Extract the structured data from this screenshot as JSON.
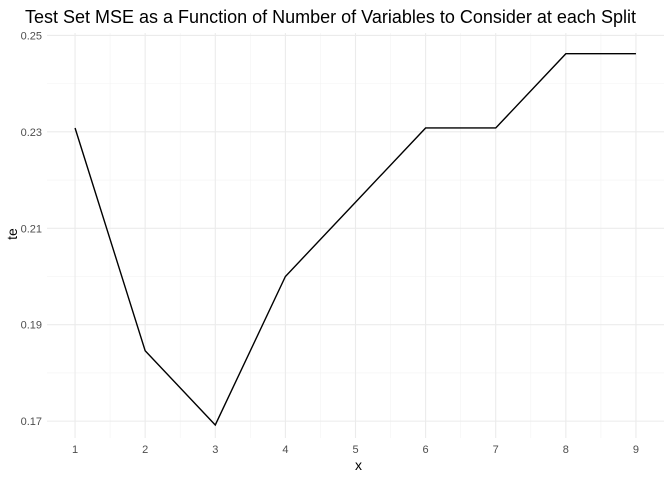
{
  "chart_data": {
    "type": "line",
    "title": "Test Set MSE as a Function of Number of Variables to Consider at each Split",
    "xlabel": "x",
    "ylabel": "te",
    "x": [
      1,
      2,
      3,
      4,
      5,
      6,
      7,
      8,
      9
    ],
    "series": [
      {
        "values": [
          0.2308,
          0.1846,
          0.1692,
          0.2,
          0.2154,
          0.2308,
          0.2308,
          0.2462,
          0.2462
        ]
      }
    ],
    "xlim": [
      0.6,
      9.4
    ],
    "ylim": [
      0.1665,
      0.2505
    ],
    "x_ticks": [
      "1",
      "2",
      "3",
      "4",
      "5",
      "6",
      "7",
      "8",
      "9"
    ],
    "y_ticks": [
      "0.17",
      "0.19",
      "0.21",
      "0.23",
      "0.25"
    ],
    "grid": true,
    "line_color": "#000000",
    "background": "#ffffff"
  }
}
